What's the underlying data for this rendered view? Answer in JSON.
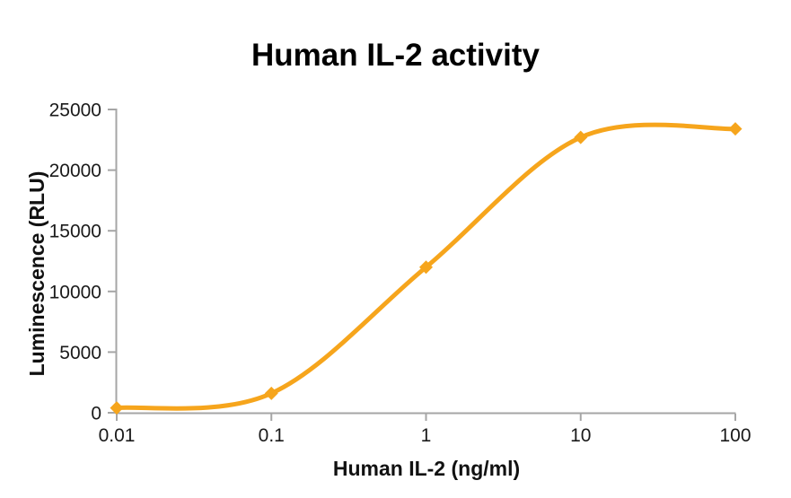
{
  "chart_data": {
    "type": "line",
    "title": "Human IL-2 activity",
    "xlabel": "Human IL-2 (ng/ml)",
    "ylabel": "Luminescence (RLU)",
    "x_scale": "log",
    "x": [
      0.01,
      0.1,
      1,
      10,
      100
    ],
    "series": [
      {
        "name": "Human IL-2",
        "values": [
          400,
          1600,
          12000,
          22700,
          23400
        ]
      }
    ],
    "xtick_labels": [
      "0.01",
      "0.1",
      "1",
      "10",
      "100"
    ],
    "ytick_values": [
      0,
      5000,
      10000,
      15000,
      20000,
      25000
    ],
    "ytick_labels": [
      "0",
      "5000",
      "10000",
      "15000",
      "20000",
      "25000"
    ],
    "xlim": [
      0.01,
      100
    ],
    "ylim": [
      0,
      25000
    ],
    "grid": false,
    "legend": "none",
    "marker": "diamond",
    "line_color": "#F6A51C",
    "axis_color": "#A6A6A6",
    "text_color": "#1A1A1A"
  }
}
